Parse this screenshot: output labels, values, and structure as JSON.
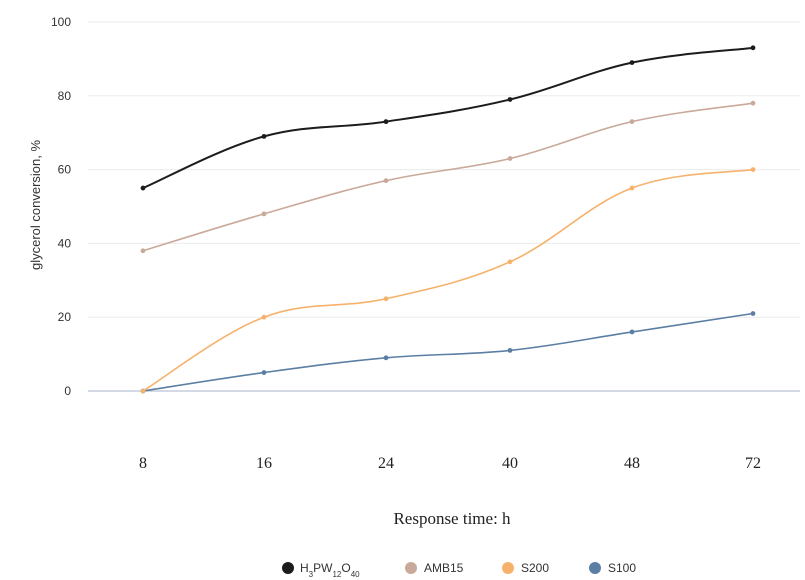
{
  "chart_data": {
    "type": "line",
    "title": "",
    "xlabel": "Response time: h",
    "ylabel": "glycerol conversion, %",
    "categories": [
      "8",
      "16",
      "24",
      "40",
      "48",
      "72"
    ],
    "ylim": [
      0,
      100
    ],
    "yticks": [
      "0",
      "20",
      "40",
      "60",
      "80",
      "100"
    ],
    "grid": true,
    "legend_position": "bottom",
    "series": [
      {
        "name": "H3PW12O40",
        "legend_parts": [
          [
            "H",
            false
          ],
          [
            "3",
            true
          ],
          [
            "PW",
            false
          ],
          [
            "12",
            true
          ],
          [
            "O",
            false
          ],
          [
            "40",
            true
          ]
        ],
        "color": "#1c1c1c",
        "values": [
          55,
          69,
          73,
          79,
          89,
          93
        ]
      },
      {
        "name": "AMB15",
        "color": "#c9a99a",
        "values": [
          38,
          48,
          57,
          63,
          73,
          78
        ]
      },
      {
        "name": "S200",
        "color": "#f6b26b",
        "values": [
          0,
          20,
          25,
          35,
          55,
          60
        ]
      },
      {
        "name": "S100",
        "color": "#5b7fa3",
        "values": [
          0,
          5,
          9,
          11,
          16,
          21
        ]
      }
    ]
  }
}
